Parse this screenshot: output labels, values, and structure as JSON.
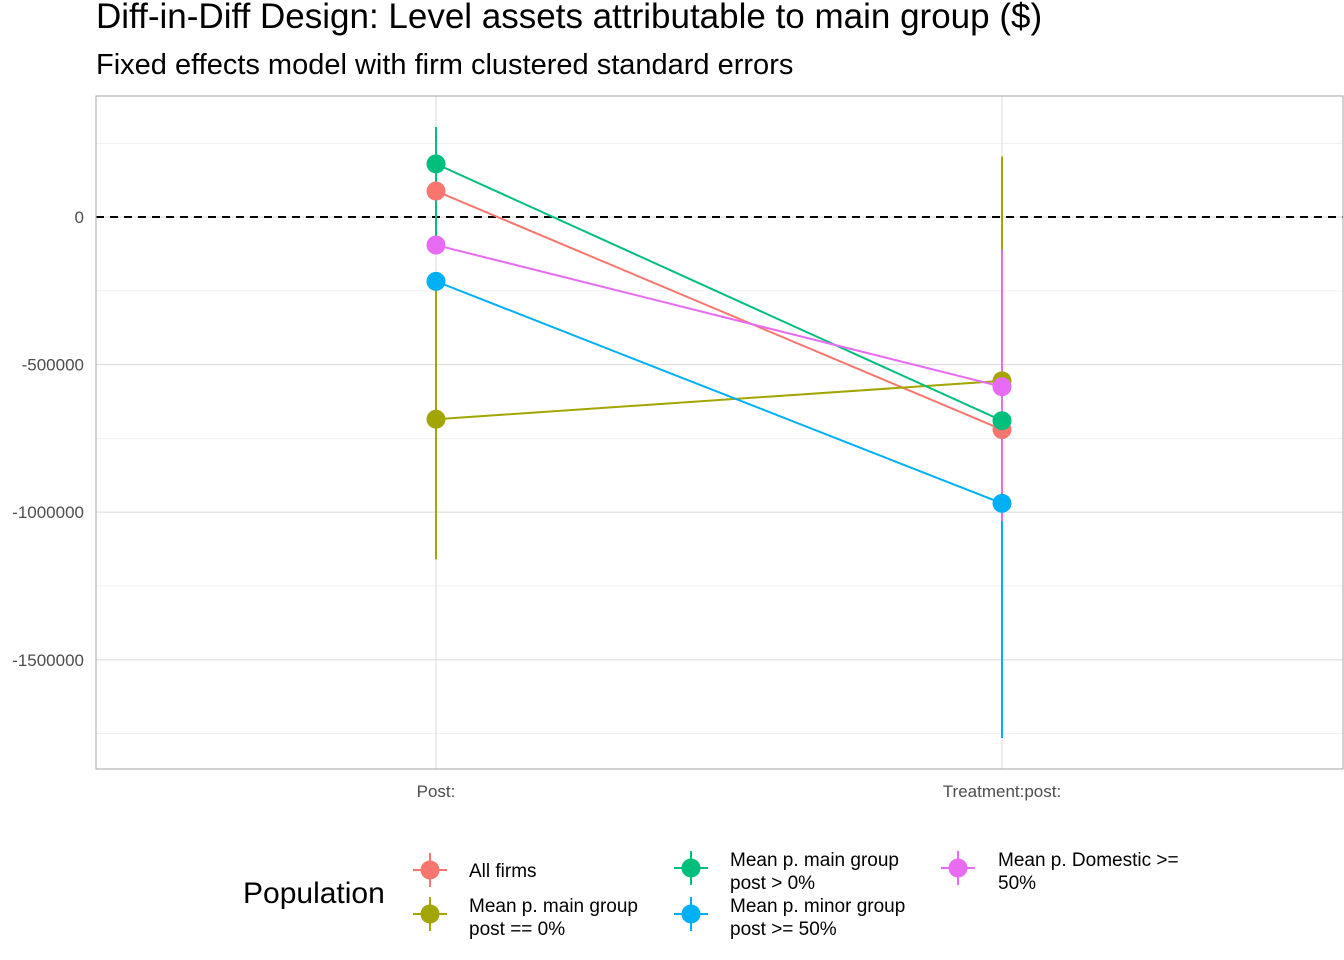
{
  "chart_data": {
    "type": "scatter",
    "title": "Diff-in-Diff Design: Level assets attributable to main group  ($)",
    "subtitle": "Fixed effects model with firm clustered standard errors",
    "xlabel": "",
    "ylabel": "",
    "categories": [
      "Post:",
      "Treatment:post:"
    ],
    "ylim": [
      -1870000,
      410000
    ],
    "y_ticks": [
      0,
      -500000,
      -1000000,
      -1500000
    ],
    "y_tick_labels": [
      "0",
      "-500000",
      "-1000000",
      "-1500000"
    ],
    "reference_line": {
      "y": 0,
      "style": "dashed"
    },
    "grid": true,
    "legend": {
      "title": "Population",
      "position": "bottom"
    },
    "series": [
      {
        "name": "All firms",
        "color": "#F8766D",
        "values": [
          88000,
          -720000
        ],
        "ci_low": [
          null,
          null
        ],
        "ci_high": [
          null,
          null
        ]
      },
      {
        "name": "Mean p. main group post == 0%",
        "label_lines": [
          "Mean p. main group",
          "post == 0%"
        ],
        "color": "#A3A500",
        "values": [
          -685000,
          -555000
        ],
        "ci_low": [
          -1160000,
          -1010000
        ],
        "ci_high": [
          -210000,
          205000
        ]
      },
      {
        "name": "Mean p. main group post > 0%",
        "label_lines": [
          "Mean p. main group",
          "post > 0%"
        ],
        "color": "#00BF7D",
        "values": [
          180000,
          -690000
        ],
        "ci_low": [
          -110000,
          null
        ],
        "ci_high": [
          305000,
          null
        ]
      },
      {
        "name": "Mean p. minor group post >= 50%",
        "label_lines": [
          "Mean p. minor group",
          "post >= 50%"
        ],
        "color": "#00B0F6",
        "values": [
          -218000,
          -970000
        ],
        "ci_low": [
          null,
          -1765000
        ],
        "ci_high": [
          null,
          -180000
        ]
      },
      {
        "name": "Mean p. Domestic >= 50%",
        "label_lines": [
          "Mean p. Domestic >=",
          "50%"
        ],
        "color": "#E76BF3",
        "values": [
          -95000,
          -575000
        ],
        "ci_low": [
          null,
          -1030000
        ],
        "ci_high": [
          null,
          -110000
        ]
      }
    ]
  }
}
